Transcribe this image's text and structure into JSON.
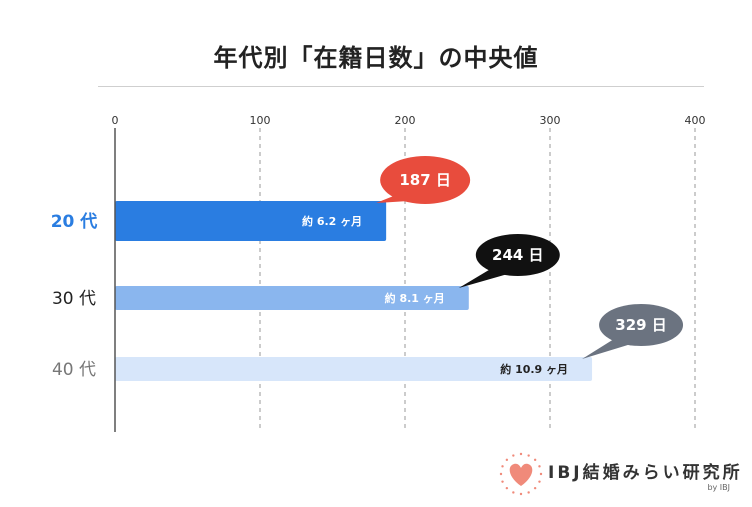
{
  "title": "年代別「在籍日数」の中央値",
  "colors": {
    "bars": [
      "#2a7de1",
      "#8ab6ee",
      "#d7e6fa"
    ],
    "category_labels": [
      "#2a7de1",
      "#222222",
      "#777777"
    ],
    "bubbles": [
      "#e84c3d",
      "#111111",
      "#6b7380"
    ],
    "inbar_text": [
      "#ffffff",
      "#ffffff",
      "#222222"
    ]
  },
  "chart_data": {
    "type": "bar",
    "orientation": "horizontal",
    "categories": [
      "20 代",
      "30 代",
      "40 代"
    ],
    "values": [
      187,
      244,
      329
    ],
    "value_labels": [
      "187 日",
      "244 日",
      "329 日"
    ],
    "bar_labels": [
      "約 6.2 ヶ月",
      "約 8.1 ヶ月",
      "約 10.9 ヶ月"
    ],
    "xlim": [
      0,
      400
    ],
    "xticks": [
      0,
      100,
      200,
      300,
      400
    ],
    "tick_labels": [
      "0",
      "100",
      "200",
      "300",
      "400"
    ],
    "grid": true
  },
  "logo": {
    "text": "IBJ結婚みらい研究所",
    "byline": "by IBJ",
    "icon": "heart-icon",
    "heart_color": "#f08a7a"
  }
}
